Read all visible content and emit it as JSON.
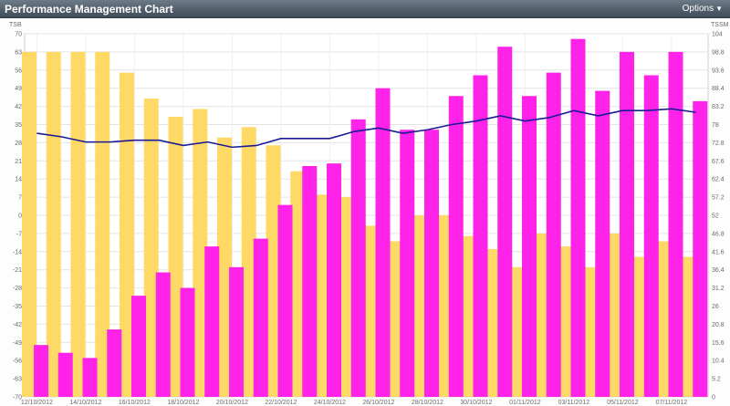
{
  "header": {
    "title": "Performance Management Chart",
    "options_label": "Options"
  },
  "chart_data": {
    "type": "bar",
    "categories": [
      "12/10/2012",
      "13/10/2012",
      "14/10/2012",
      "15/10/2012",
      "16/10/2012",
      "17/10/2012",
      "18/10/2012",
      "19/10/2012",
      "20/10/2012",
      "21/10/2012",
      "22/10/2012",
      "23/10/2012",
      "24/10/2012",
      "25/10/2012",
      "26/10/2012",
      "27/10/2012",
      "28/10/2012",
      "29/10/2012",
      "30/10/2012",
      "31/10/2012",
      "01/11/2012",
      "02/11/2012",
      "03/11/2012",
      "04/11/2012",
      "05/11/2012",
      "06/11/2012",
      "07/11/2012",
      "08/11/2012"
    ],
    "x_tick_labels": [
      "12/10/2012",
      "14/10/2012",
      "16/10/2012",
      "18/10/2012",
      "20/10/2012",
      "22/10/2012",
      "24/10/2012",
      "26/10/2012",
      "28/10/2012",
      "30/10/2012",
      "01/11/2012",
      "03/11/2012",
      "05/11/2012",
      "07/11/2012"
    ],
    "left_axis": {
      "label": "TSB",
      "ylim": [
        -70,
        70
      ],
      "ticks": [
        "70",
        "63",
        "56",
        "49",
        "42",
        "35",
        "28",
        "21",
        "14",
        "7",
        "0",
        "-7",
        "-14",
        "-21",
        "-28",
        "-35",
        "-42",
        "-49",
        "-56",
        "-63",
        "-70"
      ]
    },
    "right_axis": {
      "label": "TSSM",
      "ylim": [
        0,
        104
      ],
      "ticks": [
        "104",
        "98.8",
        "93.6",
        "88.4",
        "83.2",
        "78",
        "72.8",
        "67.6",
        "62.4",
        "57.2",
        "52",
        "46.8",
        "41.6",
        "36.4",
        "31.2",
        "26",
        "20.8",
        "15.6",
        "10.4",
        "5.2",
        "0"
      ]
    },
    "series": [
      {
        "axis": "left",
        "kind": "bar",
        "color": "#ffd966",
        "values": [
          63,
          63,
          63,
          63,
          55,
          45,
          38,
          41,
          30,
          34,
          27,
          17,
          8,
          7,
          -4,
          -10,
          0,
          0,
          -8,
          -13,
          -20,
          -7,
          -12,
          -20,
          -7,
          -16,
          -10,
          -16
        ]
      },
      {
        "axis": "left",
        "kind": "bar",
        "color": "#ff22e8",
        "values": [
          -50,
          -53,
          -55,
          -44,
          -31,
          -22,
          -28,
          -12,
          -20,
          -9,
          4,
          19,
          20,
          37,
          49,
          33,
          33,
          46,
          54,
          65,
          46,
          55,
          68,
          48,
          63,
          54,
          63,
          44
        ]
      },
      {
        "axis": "right",
        "kind": "line",
        "color": "#1a1a99",
        "values": [
          75.5,
          74.5,
          73,
          73,
          73.5,
          73.5,
          72,
          73,
          71.5,
          72,
          74,
          74,
          74,
          76,
          77,
          75.5,
          76.5,
          78,
          79,
          80.5,
          79,
          80,
          82,
          80.5,
          82,
          82,
          82.5,
          81.5
        ]
      }
    ],
    "grid": true
  }
}
